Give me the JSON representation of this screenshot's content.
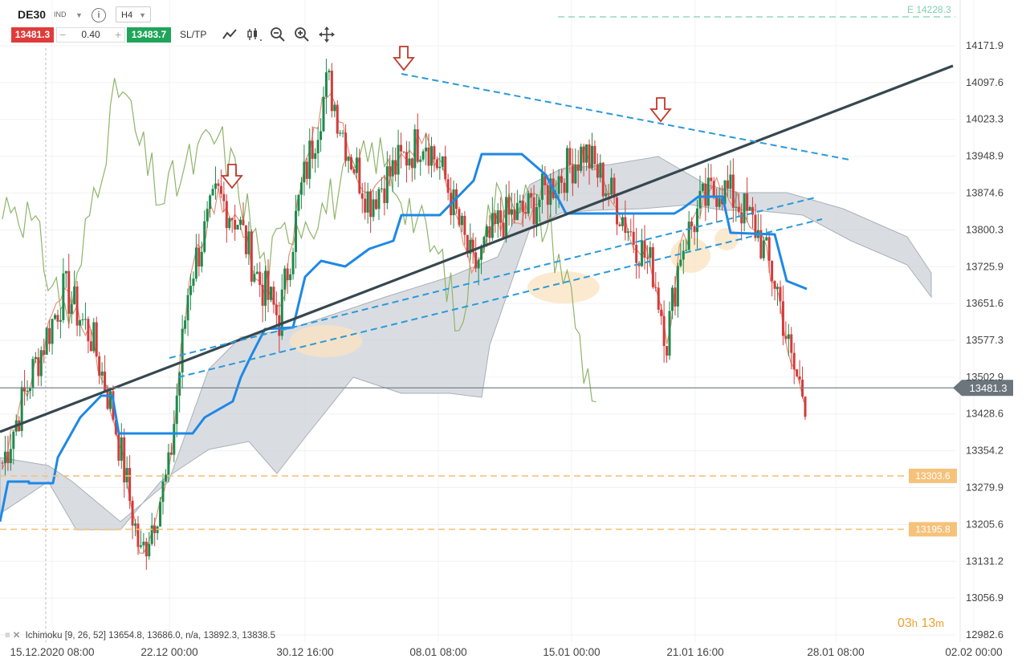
{
  "toolbar": {
    "symbol": "DE30",
    "symbol_type": "IND",
    "timeframe": "H4",
    "bid": "13481.3",
    "spread": "0.40",
    "ask": "13483.7",
    "minus": "−",
    "plus": "+",
    "sltp_label": "SL/TP",
    "info": "i",
    "icons": [
      "line-chart-icon",
      "candles-icon",
      "zoom-out-icon",
      "zoom-in-icon",
      "move-icon"
    ]
  },
  "indicator": {
    "name": "Ichimoku",
    "params": "[9, 26, 52]",
    "values": "13654.8, 13686.0, n/a, 13892.3, 13838.5"
  },
  "timer": {
    "hours": "03",
    "h_unit": "h",
    "minutes": "13",
    "m_unit": "m"
  },
  "colors": {
    "up": "#1f8a4c",
    "down": "#d23c3c",
    "kijun": "#1e88e5",
    "tenkan": "#e8917a",
    "chikou": "#8fb56a",
    "cloud": "#ccd2d8",
    "trend": "#37474f",
    "channel": "#2a9ad8",
    "support": "#f5c27a",
    "highlight": "#fbe3c0",
    "arrow": "#c0392b",
    "price_line": "#78828a"
  },
  "chart_data": {
    "type": "candlestick",
    "y_ticks": [
      "14171.9",
      "14097.6",
      "14023.3",
      "13948.9",
      "13874.6",
      "13800.3",
      "13725.9",
      "13651.6",
      "13577.3",
      "13502.9",
      "13428.6",
      "13354.2",
      "13279.9",
      "13205.6",
      "13131.2",
      "13056.9",
      "12982.6"
    ],
    "x_ticks": [
      "15.12.2020 08:00",
      "22.12 00:00",
      "30.12 16:00",
      "08.01 08:00",
      "15.01 00:00",
      "21.01 16:00",
      "28.01 08:00",
      "02.02 00:00"
    ],
    "current_price": 13481.3,
    "current_price_label": "13481.3",
    "support_levels": [
      {
        "value": 13303.6,
        "label": "13303.6"
      },
      {
        "value": 13195.8,
        "label": "13195.8"
      }
    ],
    "top_level_label": "E 14228.3",
    "sell_arrows": 3,
    "highlight_zones": 4
  }
}
